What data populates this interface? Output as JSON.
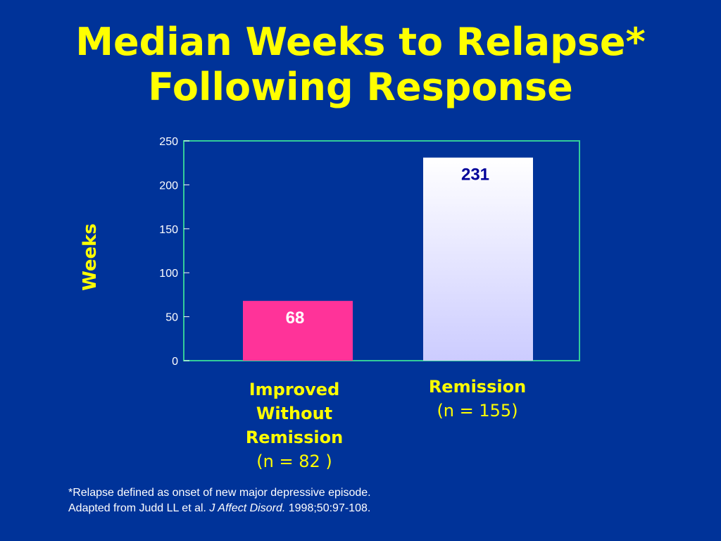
{
  "title": {
    "line1": "Median Weeks to Relapse*",
    "line2": "Following Response"
  },
  "chart_data": {
    "type": "bar",
    "categories": [
      "Improved Without Remission",
      "Remission"
    ],
    "values": [
      68,
      231
    ],
    "value_labels": [
      "68",
      "231"
    ],
    "ylabel": "Weeks",
    "ylim": [
      0,
      250
    ],
    "yticks": [
      0,
      50,
      100,
      150,
      200,
      250
    ],
    "grid": false,
    "colors": {
      "bar1": "#ff3399",
      "bar2_top": "#ffffff",
      "bar2_bottom": "#ccccff",
      "frame": "#33cc99",
      "bar1_label": "#ffffff",
      "bar2_label": "#000099",
      "tick_text": "#ffffff"
    }
  },
  "categories_text": [
    {
      "name_lines": [
        "Improved",
        "Without",
        "Remission"
      ],
      "n": "(n = 82 )"
    },
    {
      "name_lines": [
        "Remission"
      ],
      "n": "(n = 155)"
    }
  ],
  "footnote": {
    "line1": "*Relapse defined as onset of new major depressive episode.",
    "line2_prefix": "Adapted from Judd LL et al. ",
    "line2_journal": "J Affect Disord.",
    "line2_suffix": " 1998;50:97-108."
  },
  "background_color": "#003399",
  "accent_color": "#ffff00"
}
